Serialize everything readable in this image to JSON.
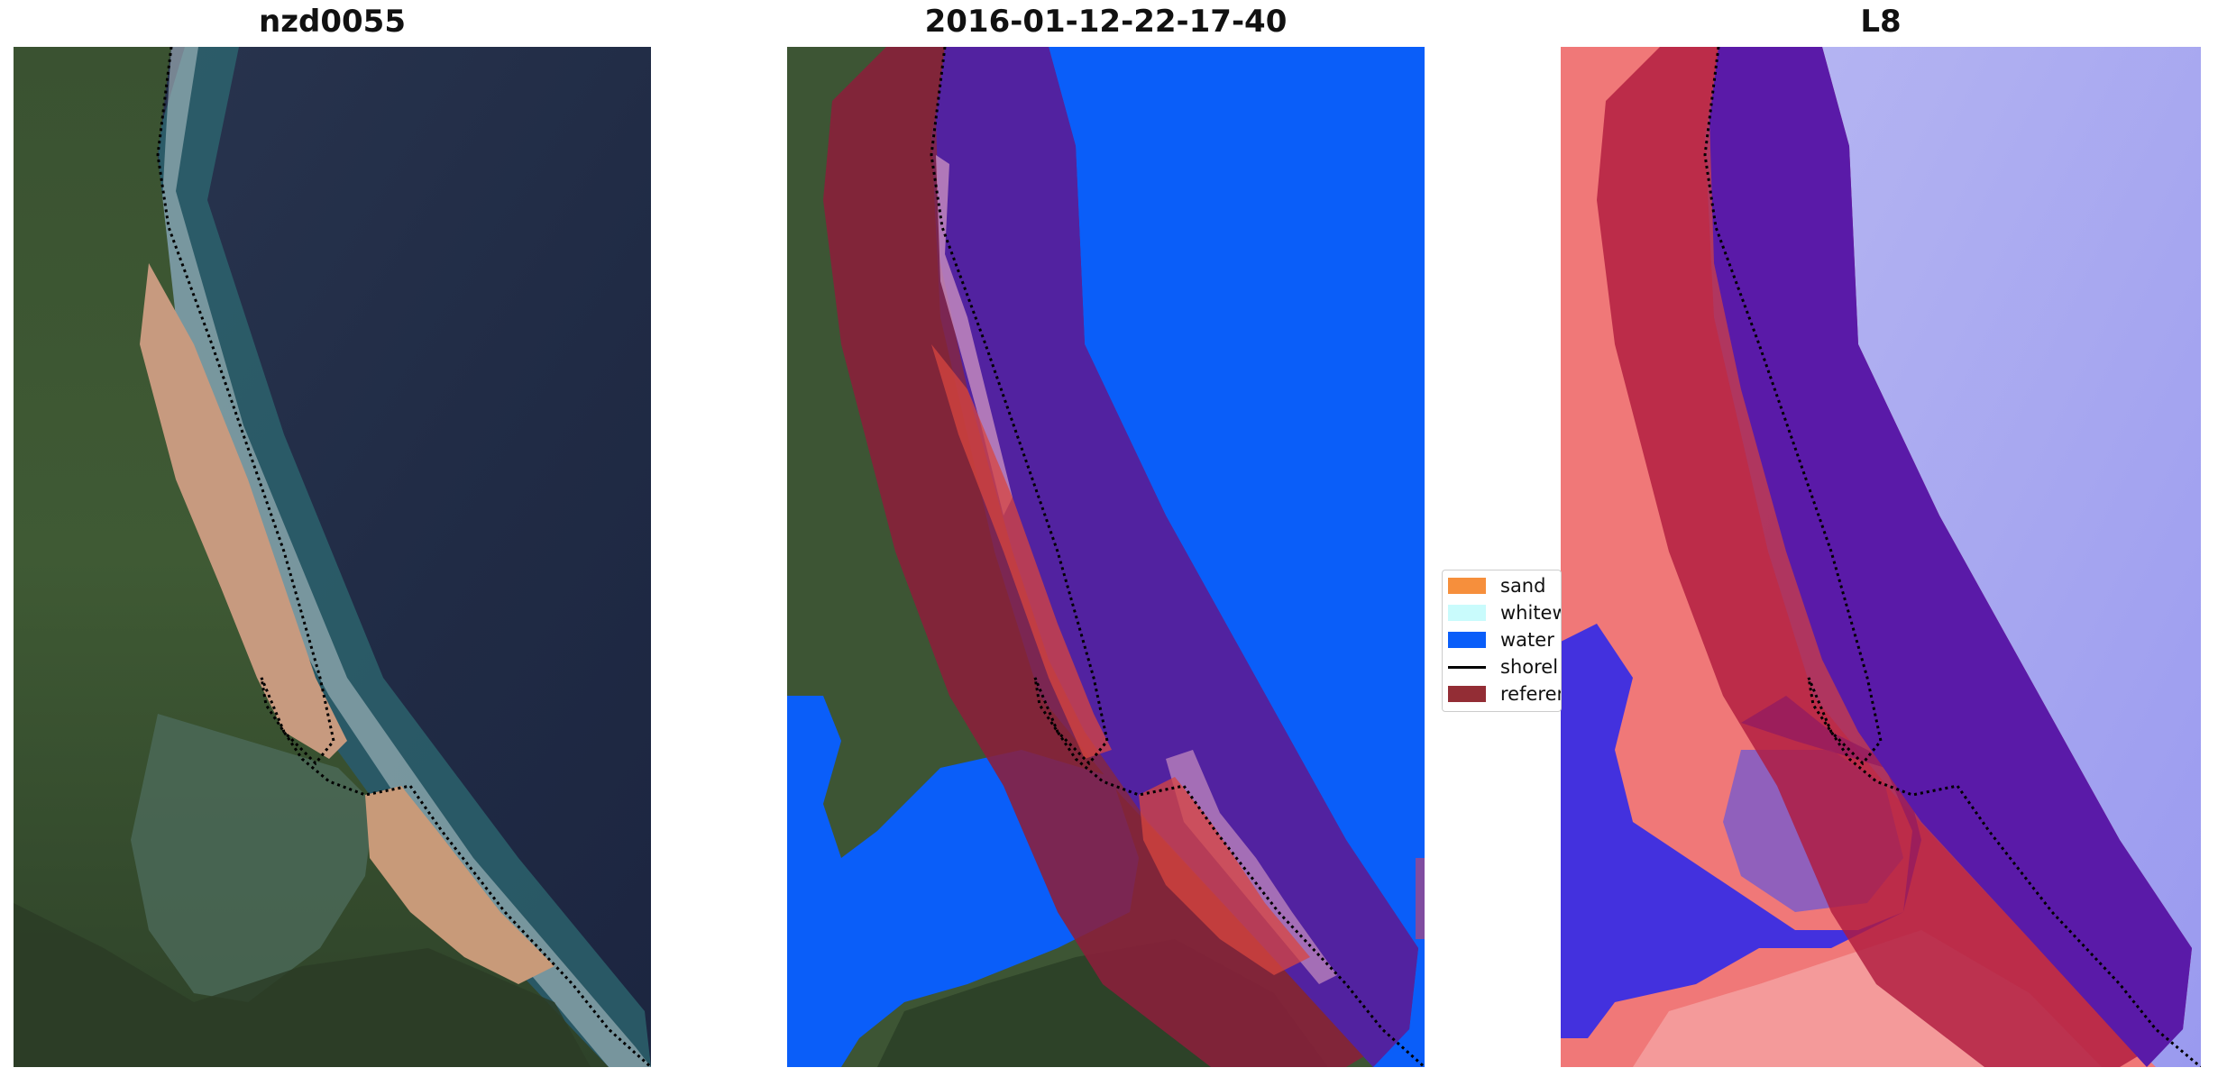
{
  "panels": [
    {
      "title": "nzd0055"
    },
    {
      "title": "2016-01-12-22-17-40"
    },
    {
      "title": "L8"
    }
  ],
  "legend": {
    "items": [
      {
        "label": "sand",
        "color": "#f68f3c",
        "kind": "patch"
      },
      {
        "label": "whitew",
        "color": "#c9fbfc",
        "kind": "patch"
      },
      {
        "label": "water",
        "color": "#0a5ef9",
        "kind": "patch"
      },
      {
        "label": "shorel",
        "color": "#000000",
        "kind": "line"
      },
      {
        "label": "referen",
        "color": "#932d35",
        "kind": "patch"
      }
    ]
  },
  "colors": {
    "water_class": "#0a5ef9",
    "reference_buffer": "#8b1f3a",
    "reference_overlap": "#5222a0",
    "ocean": "#23304a",
    "land": "#37502f",
    "sand_beach": "#c49378",
    "index_positive": "#f06a6a",
    "index_negative": "#2a2af0"
  }
}
